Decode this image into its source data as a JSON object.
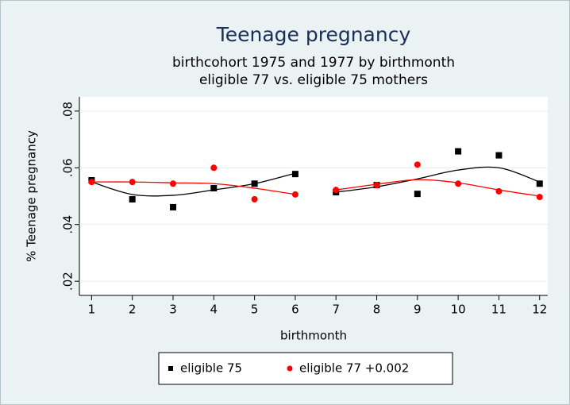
{
  "chart_data": {
    "type": "scatter",
    "title": "Teenage pregnancy",
    "subtitle": [
      "birthcohort 1975 and 1977 by birthmonth",
      "eligible 77 vs. eligible 75 mothers"
    ],
    "x_label": "birthmonth",
    "y_label": "% Teenage pregnancy",
    "x": [
      1,
      2,
      3,
      4,
      5,
      6,
      7,
      8,
      9,
      10,
      11,
      12
    ],
    "xlim": [
      0.7,
      12.2
    ],
    "xticks": [
      1,
      2,
      3,
      4,
      5,
      6,
      7,
      8,
      9,
      10,
      11,
      12
    ],
    "ylim": [
      0.015,
      0.085
    ],
    "yticks": [
      {
        "value": 0.02,
        "label": ".02"
      },
      {
        "value": 0.04,
        "label": ".04"
      },
      {
        "value": 0.06,
        "label": ".06"
      },
      {
        "value": 0.08,
        "label": ".08"
      }
    ],
    "grid": true,
    "legend": "bottom",
    "series": [
      {
        "name": "eligible 75",
        "color": "#000000",
        "marker": "square",
        "values": [
          0.0556,
          0.0489,
          0.0461,
          0.0528,
          0.0544,
          0.0578,
          0.0514,
          0.0539,
          0.0508,
          0.0658,
          0.0644,
          0.0544
        ],
        "fit": [
          {
            "x": [
              1,
              2,
              3,
              4,
              5,
              6
            ],
            "values": [
              0.055,
              0.0506,
              0.0503,
              0.0522,
              0.0544,
              0.0581
            ]
          },
          {
            "x": [
              7,
              8,
              9,
              10,
              11,
              12
            ],
            "values": [
              0.0514,
              0.0533,
              0.0561,
              0.0592,
              0.06,
              0.055
            ]
          }
        ]
      },
      {
        "name": "eligible 77 +0.002",
        "color": "#ff0000",
        "marker": "circle",
        "values": [
          0.055,
          0.055,
          0.0544,
          0.06,
          0.0489,
          0.0506,
          0.0522,
          0.0539,
          0.0611,
          0.0544,
          0.0517,
          0.0497
        ],
        "fit": [
          {
            "x": [
              1,
              2,
              3,
              4,
              5,
              6
            ],
            "values": [
              0.055,
              0.055,
              0.0547,
              0.0544,
              0.0528,
              0.0506
            ]
          },
          {
            "x": [
              7,
              8,
              9,
              10,
              11,
              12
            ],
            "values": [
              0.0522,
              0.0542,
              0.0558,
              0.0547,
              0.0522,
              0.05
            ]
          }
        ]
      }
    ]
  }
}
